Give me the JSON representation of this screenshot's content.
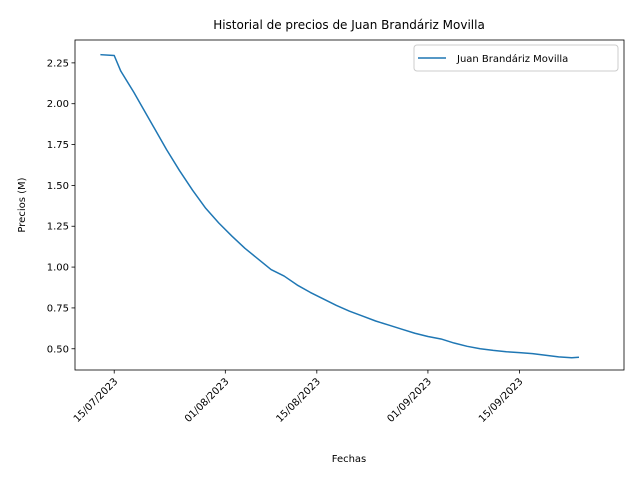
{
  "chart_data": {
    "type": "line",
    "title": "Historial de precios de Juan Brandáriz Movilla",
    "xlabel": "Fechas",
    "ylabel": "Precios (M)",
    "x_tick_labels": [
      "15/07/2023",
      "01/08/2023",
      "15/08/2023",
      "01/09/2023",
      "15/09/2023"
    ],
    "x_tick_dates": [
      "2023-07-15",
      "2023-08-01",
      "2023-08-15",
      "2023-09-01",
      "2023-09-15"
    ],
    "y_ticks": [
      0.5,
      0.75,
      1.0,
      1.25,
      1.5,
      1.75,
      2.0,
      2.25
    ],
    "y_tick_labels": [
      "0.50",
      "0.75",
      "1.00",
      "1.25",
      "1.50",
      "1.75",
      "2.00",
      "2.25"
    ],
    "xlim": [
      "2023-07-09",
      "2023-10-01"
    ],
    "ylim": [
      0.37,
      2.39
    ],
    "grid": false,
    "legend_position": "top-right",
    "color": "#1f77b4",
    "series": [
      {
        "name": "Juan Brandáriz Movilla",
        "x": [
          "2023-07-13",
          "2023-07-15",
          "2023-07-16",
          "2023-07-18",
          "2023-07-19",
          "2023-07-21",
          "2023-07-23",
          "2023-07-25",
          "2023-07-27",
          "2023-07-29",
          "2023-07-31",
          "2023-08-02",
          "2023-08-04",
          "2023-08-06",
          "2023-08-08",
          "2023-08-10",
          "2023-08-12",
          "2023-08-14",
          "2023-08-16",
          "2023-08-18",
          "2023-08-20",
          "2023-08-22",
          "2023-08-24",
          "2023-08-26",
          "2023-08-28",
          "2023-08-30",
          "2023-09-01",
          "2023-09-03",
          "2023-09-05",
          "2023-09-07",
          "2023-09-09",
          "2023-09-11",
          "2023-09-13",
          "2023-09-15",
          "2023-09-17",
          "2023-09-19",
          "2023-09-21",
          "2023-09-23",
          "2023-09-24"
        ],
        "y": [
          2.3,
          2.295,
          2.2,
          2.07,
          2.0,
          1.86,
          1.72,
          1.59,
          1.47,
          1.36,
          1.27,
          1.19,
          1.115,
          1.05,
          0.985,
          0.945,
          0.89,
          0.845,
          0.805,
          0.765,
          0.73,
          0.7,
          0.67,
          0.645,
          0.62,
          0.595,
          0.575,
          0.56,
          0.535,
          0.515,
          0.5,
          0.49,
          0.482,
          0.476,
          0.47,
          0.46,
          0.45,
          0.445,
          0.448
        ]
      }
    ]
  }
}
